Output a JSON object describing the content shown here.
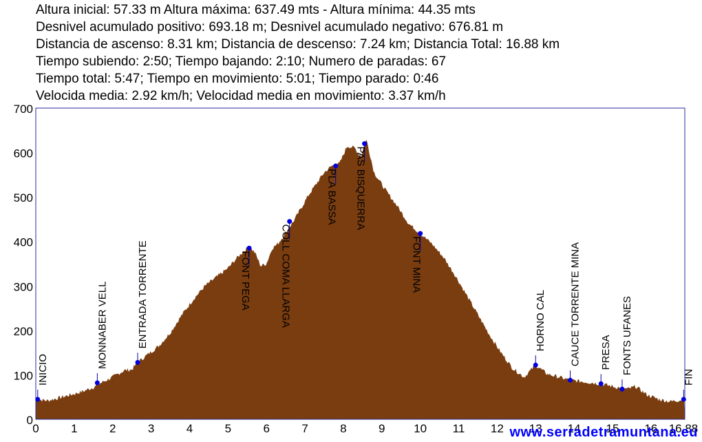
{
  "stats_lines": [
    "Altura inicial: 57.33 m Altura máxima: 637.49 mts - Altura mínima: 44.35 mts",
    "Desnivel acumulado positivo: 693.18 m; Desnivel acumulado negativo: 676.81 m",
    "Distancia de ascenso: 8.31 km; Distancia de descenso: 7.24 km; Distancia Total: 16.88 km",
    "Tiempo subiendo: 2:50; Tiempo bajando: 2:10; Numero de paradas: 67",
    "Tiempo total: 5:47; Tiempo en movimiento: 5:01; Tiempo parado: 0:46",
    "Velocida media: 2.92 km/h; Velocidad media en movimiento: 3.37 km/h"
  ],
  "watermark": "www.serradetramuntana.eu",
  "colors": {
    "fill": "#7a3d10",
    "frame": "#2a2aa0",
    "marker": "#0000dd",
    "label_line": "#0000aa"
  },
  "chart_data": {
    "type": "area",
    "xlim": [
      0,
      16.88
    ],
    "ylim": [
      0,
      700
    ],
    "x_ticks": [
      0,
      1,
      2,
      3,
      4,
      5,
      6,
      7,
      8,
      9,
      10,
      11,
      12,
      13,
      14,
      15,
      16
    ],
    "x_tick_labels": [
      "0",
      "1",
      "2",
      "3",
      "4",
      "5",
      "6",
      "7",
      "8",
      "9",
      "10",
      "11",
      "12",
      "13",
      "14",
      "15",
      "16"
    ],
    "x_end_label": "16.88",
    "y_ticks": [
      0,
      100,
      200,
      300,
      400,
      500,
      600,
      700
    ],
    "y_tick_labels": [
      "0",
      "100",
      "200",
      "300",
      "400",
      "500",
      "600",
      "700"
    ],
    "profile": {
      "x": [
        0,
        0.3,
        0.6,
        0.9,
        1.2,
        1.5,
        1.7,
        2.0,
        2.3,
        2.5,
        2.65,
        2.9,
        3.2,
        3.5,
        3.8,
        4.1,
        4.4,
        4.7,
        5.0,
        5.2,
        5.4,
        5.55,
        5.7,
        5.85,
        6.0,
        6.15,
        6.3,
        6.5,
        6.7,
        6.9,
        7.1,
        7.3,
        7.5,
        7.7,
        7.9,
        8.1,
        8.3,
        8.45,
        8.6,
        8.8,
        9.1,
        9.4,
        9.7,
        10.0,
        10.3,
        10.6,
        10.9,
        11.2,
        11.5,
        11.8,
        12.1,
        12.4,
        12.7,
        13.0,
        13.3,
        13.6,
        13.9,
        14.2,
        14.5,
        14.8,
        15.1,
        15.4,
        15.6,
        15.9,
        16.2,
        16.5,
        16.88
      ],
      "y": [
        45,
        42,
        48,
        55,
        62,
        72,
        82,
        95,
        110,
        112,
        128,
        145,
        165,
        195,
        235,
        270,
        300,
        320,
        340,
        360,
        378,
        388,
        375,
        345,
        350,
        385,
        395,
        420,
        445,
        475,
        505,
        530,
        555,
        570,
        575,
        615,
        610,
        590,
        630,
        555,
        515,
        480,
        440,
        418,
        395,
        365,
        325,
        280,
        235,
        190,
        150,
        115,
        95,
        122,
        102,
        95,
        88,
        85,
        82,
        78,
        72,
        68,
        74,
        55,
        45,
        40,
        45
      ]
    },
    "waypoints": [
      {
        "name": "INICIO",
        "x": 0.05,
        "y": 45,
        "label_side": "up"
      },
      {
        "name": "MONNABER VELL",
        "x": 1.6,
        "y": 82,
        "label_side": "up"
      },
      {
        "name": "ENTRADA TORRENTE",
        "x": 2.65,
        "y": 128,
        "label_side": "up"
      },
      {
        "name": "FONT PEGA",
        "x": 5.55,
        "y": 385,
        "label_side": "down"
      },
      {
        "name": "COLL COMA LLARGA",
        "x": 6.6,
        "y": 445,
        "label_side": "down"
      },
      {
        "name": "PLA BASSA",
        "x": 7.8,
        "y": 570,
        "label_side": "down"
      },
      {
        "name": "PAS BISQUERRA",
        "x": 8.55,
        "y": 620,
        "label_side": "down"
      },
      {
        "name": "FONT MINA",
        "x": 10.0,
        "y": 418,
        "label_side": "down"
      },
      {
        "name": "HORNO CAL",
        "x": 13.0,
        "y": 122,
        "label_side": "up"
      },
      {
        "name": "CAUCE TORRENTE MINA",
        "x": 13.9,
        "y": 88,
        "label_side": "up"
      },
      {
        "name": "PRESA",
        "x": 14.7,
        "y": 80,
        "label_side": "up"
      },
      {
        "name": "FONTS UFANES",
        "x": 15.25,
        "y": 68,
        "label_side": "up"
      },
      {
        "name": "FIN",
        "x": 16.85,
        "y": 45,
        "label_side": "up"
      }
    ]
  }
}
